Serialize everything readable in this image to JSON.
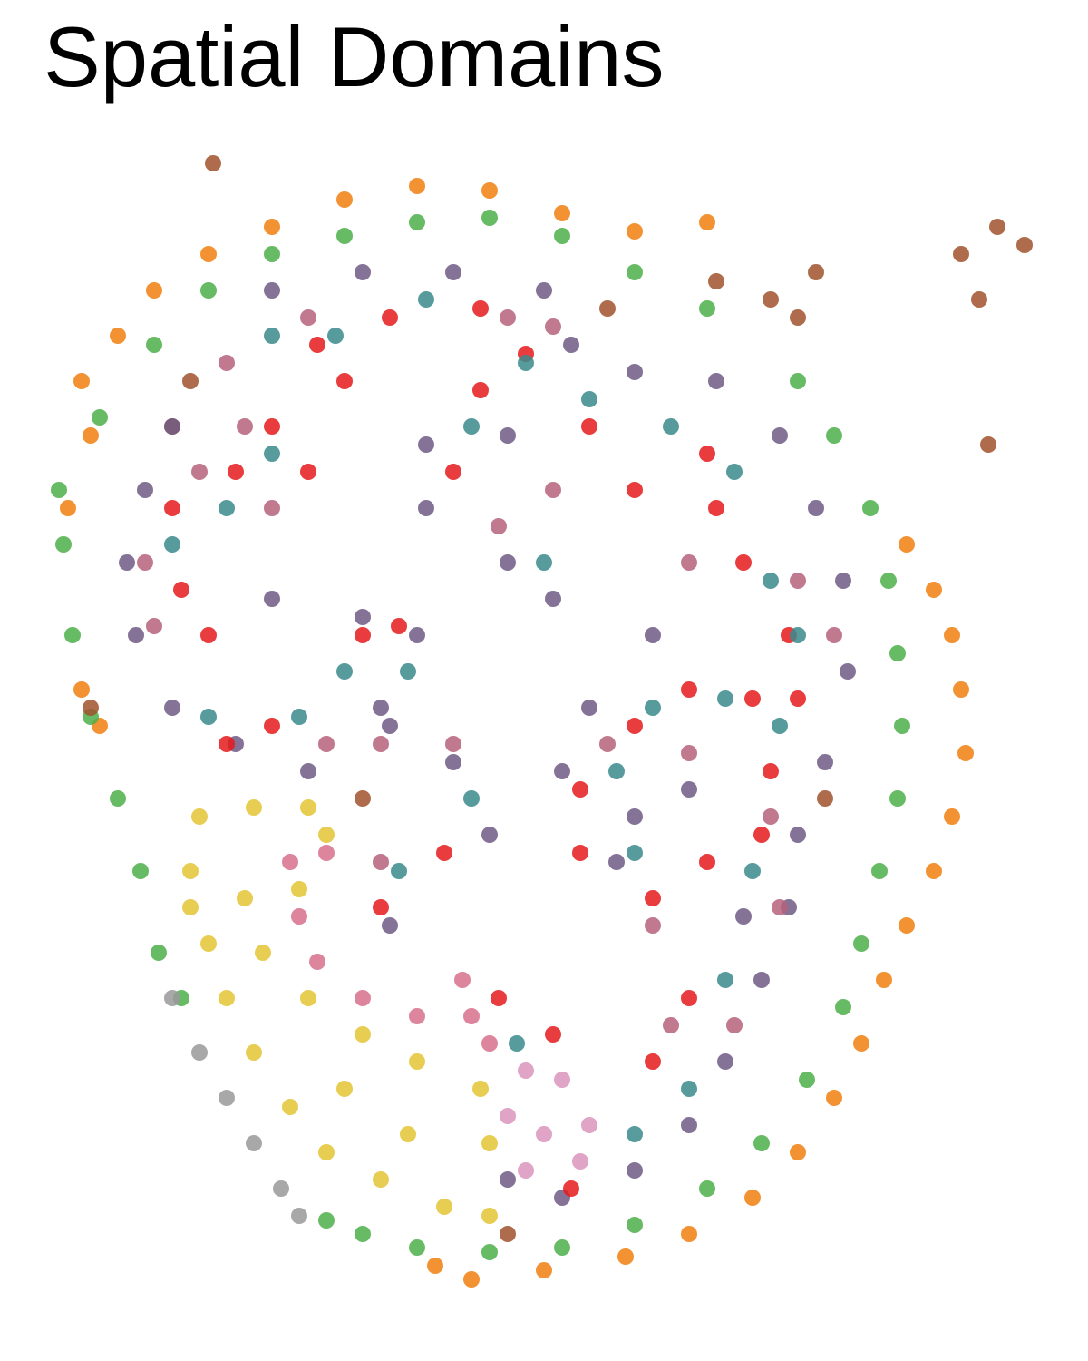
{
  "chart_data": {
    "type": "scatter",
    "title": "Spatial Domains",
    "xlim": [
      0,
      1200
    ],
    "ylim": [
      1450,
      150
    ],
    "series": [
      {
        "color": "#f07f0f",
        "x": [
          100,
          75,
          90,
          130,
          170,
          230,
          300,
          380,
          460,
          540,
          620,
          700,
          780,
          1000,
          1030,
          1050,
          1060,
          1065,
          1050,
          1030,
          1000,
          975,
          950,
          920,
          880,
          830,
          760,
          690,
          600,
          520,
          480,
          110,
          90
        ],
        "values": [
          480,
          560,
          420,
          370,
          320,
          280,
          250,
          220,
          205,
          210,
          235,
          255,
          245,
          600,
          650,
          700,
          760,
          830,
          900,
          960,
          1020,
          1080,
          1150,
          1210,
          1270,
          1320,
          1360,
          1385,
          1400,
          1410,
          1395,
          800,
          760
        ]
      },
      {
        "color": "#4daf4a",
        "x": [
          70,
          80,
          100,
          130,
          155,
          175,
          200,
          65,
          110,
          170,
          230,
          300,
          380,
          460,
          540,
          620,
          700,
          780,
          880,
          920,
          960,
          980,
          990,
          995,
          990,
          970,
          950,
          930,
          890,
          840,
          780,
          700,
          620,
          540,
          460,
          400,
          360
        ],
        "values": [
          600,
          700,
          790,
          880,
          960,
          1050,
          1100,
          540,
          460,
          380,
          320,
          280,
          260,
          245,
          240,
          260,
          300,
          340,
          420,
          480,
          560,
          640,
          720,
          800,
          880,
          960,
          1040,
          1110,
          1190,
          1260,
          1310,
          1350,
          1375,
          1380,
          1375,
          1360,
          1345
        ]
      },
      {
        "color": "#a0522d",
        "x": [
          235,
          1060,
          1100,
          1130,
          1080,
          1090,
          850,
          900,
          880,
          790,
          670,
          210,
          190,
          100,
          910,
          400,
          560
        ],
        "values": [
          180,
          280,
          250,
          270,
          330,
          490,
          330,
          300,
          350,
          310,
          340,
          420,
          470,
          780,
          880,
          880,
          1360
        ]
      },
      {
        "color": "#6e5b85",
        "x": [
          300,
          400,
          500,
          600,
          630,
          560,
          470,
          700,
          790,
          860,
          900,
          930,
          935,
          910,
          880,
          870,
          840,
          800,
          760,
          700,
          620,
          560,
          190,
          160,
          140,
          150,
          190,
          260,
          340,
          430,
          460,
          400,
          300,
          420,
          620,
          650,
          700,
          760,
          720,
          680,
          560,
          610,
          470,
          500,
          540,
          430,
          820
        ],
        "values": [
          320,
          300,
          300,
          320,
          380,
          480,
          490,
          410,
          420,
          480,
          560,
          640,
          740,
          840,
          920,
          1000,
          1080,
          1170,
          1240,
          1290,
          1320,
          1300,
          470,
          540,
          620,
          700,
          780,
          820,
          850,
          800,
          700,
          680,
          660,
          780,
          850,
          780,
          900,
          870,
          700,
          950,
          620,
          660,
          560,
          840,
          920,
          1020,
          1010
        ]
      },
      {
        "color": "#e41a1c",
        "x": [
          350,
          430,
          530,
          380,
          300,
          260,
          340,
          500,
          530,
          580,
          650,
          700,
          780,
          790,
          820,
          870,
          880,
          200,
          230,
          190,
          400,
          440,
          300,
          250,
          640,
          700,
          760,
          830,
          850,
          780,
          720,
          640,
          420,
          490,
          550,
          610,
          720,
          760,
          630,
          840
        ],
        "values": [
          380,
          350,
          340,
          420,
          470,
          520,
          520,
          520,
          430,
          390,
          470,
          540,
          500,
          560,
          620,
          700,
          770,
          650,
          700,
          560,
          700,
          690,
          800,
          820,
          870,
          800,
          760,
          770,
          850,
          950,
          990,
          940,
          1000,
          940,
          1100,
          1140,
          1170,
          1100,
          1310,
          920
        ]
      },
      {
        "color": "#3a8a8c",
        "x": [
          300,
          370,
          470,
          580,
          520,
          300,
          250,
          650,
          740,
          810,
          600,
          850,
          880,
          190,
          380,
          450,
          230,
          330,
          720,
          800,
          680,
          860,
          830,
          520,
          440,
          700,
          800,
          760,
          570,
          700
        ],
        "values": [
          370,
          370,
          330,
          400,
          470,
          500,
          560,
          440,
          470,
          520,
          620,
          640,
          700,
          600,
          740,
          740,
          790,
          790,
          780,
          770,
          850,
          800,
          960,
          880,
          960,
          940,
          1080,
          1200,
          1150,
          1250
        ]
      },
      {
        "color": "#b5627a",
        "x": [
          340,
          560,
          610,
          250,
          270,
          220,
          160,
          170,
          300,
          550,
          610,
          760,
          880,
          920,
          360,
          420,
          670,
          760,
          850,
          860,
          810,
          420,
          740,
          500,
          720
        ],
        "values": [
          350,
          350,
          360,
          400,
          470,
          520,
          620,
          690,
          560,
          580,
          540,
          620,
          640,
          700,
          820,
          820,
          820,
          830,
          900,
          1000,
          1130,
          950,
          1130,
          820,
          1020
        ]
      },
      {
        "color": "#e3c432",
        "x": [
          220,
          280,
          340,
          360,
          210,
          230,
          250,
          280,
          320,
          360,
          420,
          490,
          540,
          540,
          530,
          460,
          400,
          340,
          290,
          270,
          330,
          380,
          450,
          210
        ],
        "values": [
          900,
          890,
          890,
          920,
          960,
          1040,
          1100,
          1160,
          1220,
          1270,
          1300,
          1330,
          1340,
          1260,
          1200,
          1170,
          1140,
          1100,
          1050,
          990,
          980,
          1200,
          1250,
          1000
        ]
      },
      {
        "color": "#d6708c",
        "x": [
          320,
          360,
          330,
          350,
          400,
          460,
          520,
          540,
          510
        ],
        "values": [
          950,
          940,
          1010,
          1060,
          1100,
          1120,
          1120,
          1150,
          1080
        ]
      },
      {
        "color": "#d994bc",
        "x": [
          580,
          620,
          650,
          600,
          560,
          640,
          580
        ],
        "values": [
          1180,
          1190,
          1240,
          1250,
          1230,
          1280,
          1290
        ]
      },
      {
        "color": "#999999",
        "x": [
          190,
          220,
          250,
          280,
          310,
          330
        ],
        "values": [
          1100,
          1160,
          1210,
          1260,
          1310,
          1340
        ]
      }
    ]
  }
}
